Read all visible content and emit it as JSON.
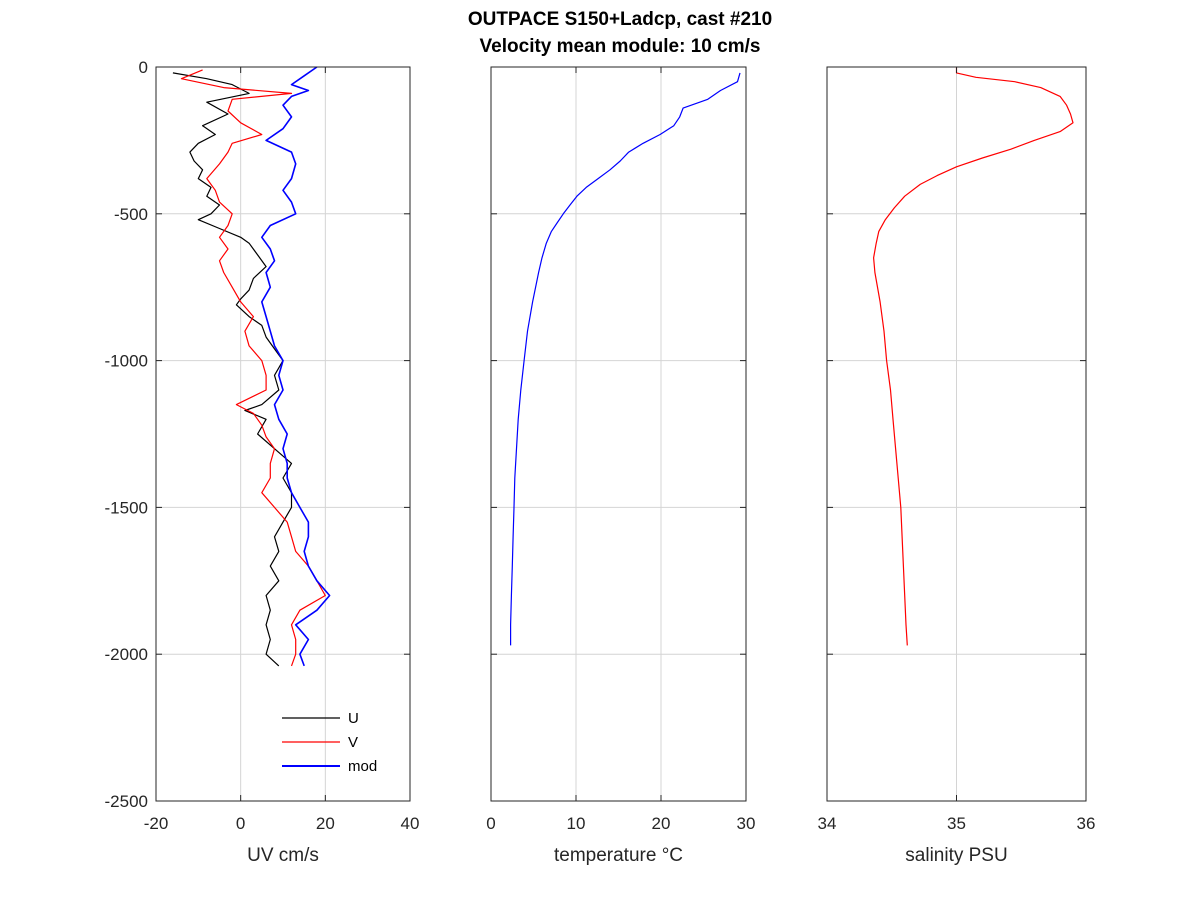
{
  "figure": {
    "title_line1": "OUTPACE S150+Ladcp, cast #210",
    "title_line2": "Velocity mean module:  10 cm/s"
  },
  "chart_data": [
    {
      "type": "line",
      "xlabel": "UV cm/s",
      "ylabel": "",
      "xlim": [
        -20,
        40
      ],
      "ylim": [
        -2500,
        0
      ],
      "xticks": [
        -20,
        0,
        20,
        40
      ],
      "yticks": [
        0,
        -500,
        -1000,
        -1500,
        -2000,
        -2500
      ],
      "grid": true,
      "legend": "bottom-right",
      "series": [
        {
          "name": "U",
          "color": "#000000",
          "depth": [
            -20,
            -40,
            -60,
            -90,
            -120,
            -160,
            -200,
            -230,
            -260,
            -290,
            -320,
            -350,
            -380,
            -410,
            -440,
            -470,
            -500,
            -520,
            -550,
            -580,
            -600,
            -640,
            -680,
            -720,
            -760,
            -790,
            -810,
            -850,
            -880,
            -920,
            -960,
            -1000,
            -1050,
            -1100,
            -1150,
            -1170,
            -1200,
            -1250,
            -1300,
            -1350,
            -1400,
            -1450,
            -1500,
            -1550,
            -1600,
            -1650,
            -1700,
            -1750,
            -1800,
            -1850,
            -1900,
            -1950,
            -2000,
            -2040
          ],
          "values": [
            -16,
            -8,
            -2,
            2,
            -8,
            -3,
            -9,
            -6,
            -10,
            -12,
            -11,
            -9,
            -10,
            -7,
            -8,
            -5,
            -7,
            -10,
            -5,
            0,
            2,
            4,
            6,
            3,
            2,
            0,
            -1,
            2,
            5,
            6,
            8,
            10,
            8,
            9,
            5,
            1,
            6,
            4,
            8,
            12,
            10,
            12,
            12,
            10,
            8,
            9,
            7,
            9,
            6,
            7,
            6,
            7,
            6,
            9
          ]
        },
        {
          "name": "V",
          "color": "#ff0000",
          "depth": [
            -10,
            -40,
            -70,
            -90,
            -110,
            -150,
            -190,
            -230,
            -260,
            -290,
            -330,
            -380,
            -420,
            -460,
            -500,
            -540,
            -580,
            -620,
            -660,
            -700,
            -750,
            -800,
            -850,
            -900,
            -950,
            -1000,
            -1050,
            -1100,
            -1150,
            -1180,
            -1220,
            -1260,
            -1300,
            -1350,
            -1400,
            -1450,
            -1500,
            -1550,
            -1600,
            -1650,
            -1700,
            -1750,
            -1800,
            -1850,
            -1900,
            -1950,
            -2000,
            -2040
          ],
          "values": [
            -9,
            -14,
            -4,
            12,
            -2,
            -3,
            0,
            5,
            -2,
            -3,
            -5,
            -8,
            -6,
            -5,
            -2,
            -3,
            -5,
            -3,
            -5,
            -4,
            -2,
            0,
            3,
            1,
            2,
            5,
            6,
            6,
            -1,
            3,
            5,
            6,
            8,
            7,
            7,
            5,
            8,
            11,
            12,
            13,
            16,
            18,
            20,
            14,
            12,
            13,
            13,
            12
          ]
        },
        {
          "name": "mod",
          "color": "#0000ff",
          "depth": [
            0,
            -30,
            -60,
            -80,
            -100,
            -130,
            -170,
            -210,
            -250,
            -290,
            -330,
            -380,
            -420,
            -460,
            -500,
            -540,
            -580,
            -620,
            -660,
            -700,
            -750,
            -800,
            -850,
            -900,
            -950,
            -1000,
            -1050,
            -1100,
            -1150,
            -1200,
            -1250,
            -1300,
            -1350,
            -1400,
            -1450,
            -1500,
            -1550,
            -1600,
            -1650,
            -1700,
            -1750,
            -1800,
            -1850,
            -1900,
            -1950,
            -2000,
            -2040
          ],
          "values": [
            18,
            15,
            12,
            16,
            12,
            10,
            12,
            10,
            6,
            12,
            13,
            12,
            10,
            12,
            13,
            7,
            5,
            7,
            8,
            6,
            7,
            5,
            6,
            7,
            8,
            10,
            9,
            10,
            8,
            9,
            11,
            10,
            11,
            11,
            12,
            14,
            16,
            16,
            15,
            16,
            18,
            21,
            18,
            13,
            16,
            14,
            15
          ]
        }
      ]
    },
    {
      "type": "line",
      "xlabel": "temperature °C",
      "ylabel": "",
      "xlim": [
        0,
        30
      ],
      "ylim": [
        -2500,
        0
      ],
      "xticks": [
        0,
        10,
        20,
        30
      ],
      "yticks": [
        0,
        -500,
        -1000,
        -1500,
        -2000,
        -2500
      ],
      "grid": true,
      "series": [
        {
          "color": "#0000ff",
          "depth": [
            -20,
            -50,
            -80,
            -110,
            -140,
            -170,
            -200,
            -230,
            -260,
            -290,
            -320,
            -350,
            -380,
            -410,
            -440,
            -470,
            -500,
            -530,
            -560,
            -600,
            -650,
            -700,
            -800,
            -900,
            -1000,
            -1100,
            -1200,
            -1300,
            -1400,
            -1500,
            -1600,
            -1700,
            -1800,
            -1900,
            -1970
          ],
          "values": [
            29.3,
            29,
            27,
            25.5,
            22.6,
            22.2,
            21.5,
            19.9,
            17.9,
            16.2,
            15.2,
            14,
            12.6,
            11.2,
            10.1,
            9.3,
            8.5,
            7.8,
            7.1,
            6.5,
            6.0,
            5.6,
            4.9,
            4.3,
            3.9,
            3.5,
            3.2,
            3.0,
            2.8,
            2.7,
            2.6,
            2.5,
            2.4,
            2.3,
            2.3
          ]
        }
      ]
    },
    {
      "type": "line",
      "xlabel": "salinity PSU",
      "ylabel": "",
      "xlim": [
        34,
        36
      ],
      "ylim": [
        -2500,
        0
      ],
      "xticks": [
        34,
        35,
        36
      ],
      "yticks": [
        0,
        -500,
        -1000,
        -1500,
        -2000,
        -2500
      ],
      "grid": true,
      "series": [
        {
          "color": "#ff0000",
          "depth": [
            0,
            -20,
            -35,
            -50,
            -70,
            -100,
            -130,
            -160,
            -190,
            -220,
            -250,
            -280,
            -310,
            -340,
            -370,
            -400,
            -440,
            -480,
            -520,
            -560,
            -600,
            -650,
            -700,
            -800,
            -900,
            -1000,
            -1100,
            -1200,
            -1300,
            -1400,
            -1500,
            -1600,
            -1700,
            -1800,
            -1900,
            -1970
          ],
          "values": [
            35.0,
            35.0,
            35.15,
            35.45,
            35.65,
            35.8,
            35.85,
            35.88,
            35.9,
            35.8,
            35.6,
            35.42,
            35.2,
            35.0,
            34.85,
            34.72,
            34.6,
            34.52,
            34.45,
            34.4,
            34.38,
            34.36,
            34.37,
            34.41,
            34.44,
            34.46,
            34.49,
            34.51,
            34.53,
            34.55,
            34.57,
            34.58,
            34.59,
            34.6,
            34.61,
            34.62
          ]
        }
      ]
    }
  ]
}
